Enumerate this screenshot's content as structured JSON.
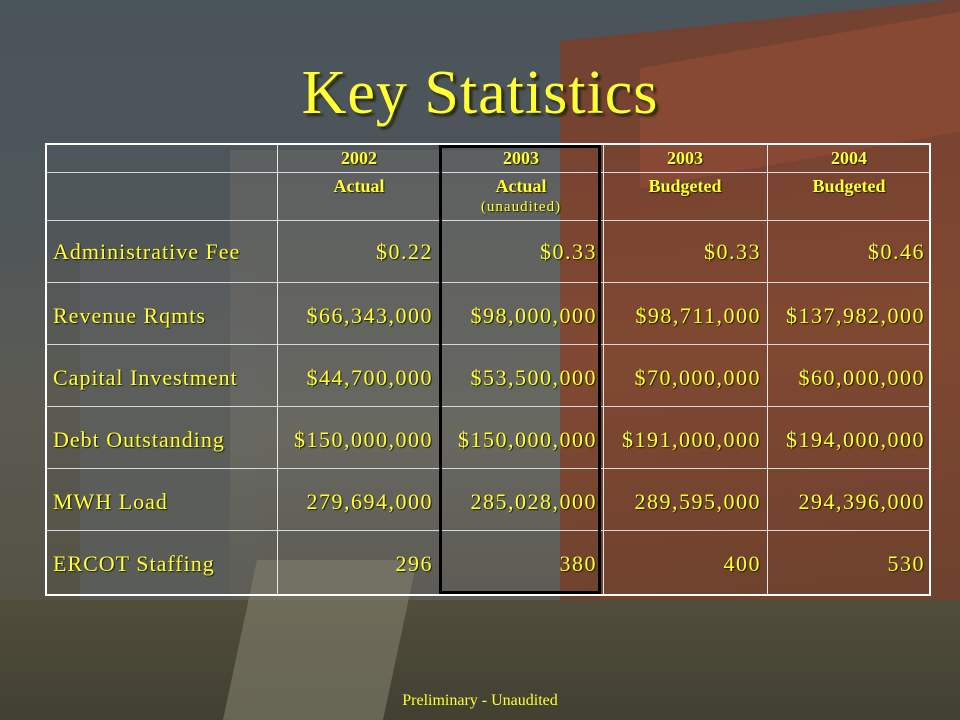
{
  "slide": {
    "title": "Key Statistics",
    "footer": "Preliminary - Unaudited"
  },
  "table": {
    "columns": [
      {
        "year": "2002",
        "type": "Actual",
        "note": ""
      },
      {
        "year": "2003",
        "type": "Actual",
        "note": "(unaudited)"
      },
      {
        "year": "2003",
        "type": "Budgeted",
        "note": ""
      },
      {
        "year": "2004",
        "type": "Budgeted",
        "note": ""
      }
    ],
    "rows": [
      {
        "label": "Administrative Fee",
        "values": [
          "$0.22",
          "$0.33",
          "$0.33",
          "$0.46"
        ]
      },
      {
        "label": "Revenue Rqmts",
        "values": [
          "$66,343,000",
          "$98,000,000",
          "$98,711,000",
          "$137,982,000"
        ]
      },
      {
        "label": "Capital Investment",
        "values": [
          "$44,700,000",
          "$53,500,000",
          "$70,000,000",
          "$60,000,000"
        ]
      },
      {
        "label": "Debt Outstanding",
        "values": [
          "$150,000,000",
          "$150,000,000",
          "$191,000,000",
          "$194,000,000"
        ]
      },
      {
        "label": "MWH Load",
        "values": [
          "279,694,000",
          "285,028,000",
          "289,595,000",
          "294,396,000"
        ]
      },
      {
        "label": "ERCOT Staffing",
        "values": [
          "296",
          "380",
          "400",
          "530"
        ]
      }
    ]
  }
}
